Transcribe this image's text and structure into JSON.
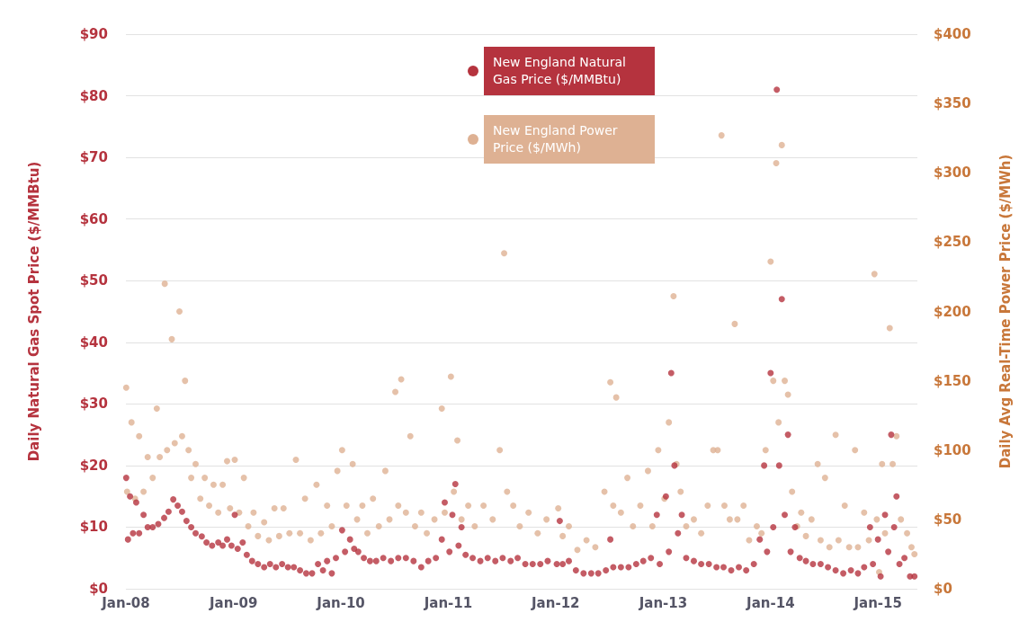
{
  "chart_data": {
    "type": "scatter",
    "ylabel": "Daily Natural Gas Spot Price ($/MMBtu)",
    "y2label": "Daily Avg Real-Time Power Price ($/MWh)",
    "xlim": [
      "2008-01-01",
      "2015-05-15"
    ],
    "xticks": [
      {
        "value": "2008-01",
        "label": "Jan-08"
      },
      {
        "value": "2009-01",
        "label": "Jan-09"
      },
      {
        "value": "2010-01",
        "label": "Jan-10"
      },
      {
        "value": "2011-01",
        "label": "Jan-11"
      },
      {
        "value": "2012-01",
        "label": "Jan-12"
      },
      {
        "value": "2013-01",
        "label": "Jan-13"
      },
      {
        "value": "2014-01",
        "label": "Jan-14"
      },
      {
        "value": "2015-01",
        "label": "Jan-15"
      }
    ],
    "ylim": [
      0,
      90
    ],
    "yticks": [
      {
        "value": 0,
        "label": "$0"
      },
      {
        "value": 10,
        "label": "$10"
      },
      {
        "value": 20,
        "label": "$20"
      },
      {
        "value": 30,
        "label": "$30"
      },
      {
        "value": 40,
        "label": "$40"
      },
      {
        "value": 50,
        "label": "$50"
      },
      {
        "value": 60,
        "label": "$60"
      },
      {
        "value": 70,
        "label": "$70"
      },
      {
        "value": 80,
        "label": "$80"
      },
      {
        "value": 90,
        "label": "$90"
      }
    ],
    "y2lim": [
      0,
      400
    ],
    "y2ticks": [
      {
        "value": 0,
        "label": "$0"
      },
      {
        "value": 50,
        "label": "$50"
      },
      {
        "value": 100,
        "label": "$100"
      },
      {
        "value": 150,
        "label": "$150"
      },
      {
        "value": 200,
        "label": "$200"
      },
      {
        "value": 250,
        "label": "$250"
      },
      {
        "value": 300,
        "label": "$300"
      },
      {
        "value": 350,
        "label": "$350"
      },
      {
        "value": 400,
        "label": "$400"
      }
    ],
    "grid": "y",
    "legend": "top",
    "marker": "circle",
    "series": [
      {
        "name": "New England Natural Gas Price ($/MMBtu)",
        "color": "#b5333e",
        "x": [
          "2008-01-02",
          "2008-01-08",
          "2008-01-15",
          "2008-01-25",
          "2008-02-05",
          "2008-02-15",
          "2008-03-01",
          "2008-03-15",
          "2008-04-01",
          "2008-04-20",
          "2008-05-10",
          "2008-05-25",
          "2008-06-10",
          "2008-06-25",
          "2008-07-10",
          "2008-07-25",
          "2008-08-10",
          "2008-08-25",
          "2008-09-15",
          "2008-10-01",
          "2008-10-20",
          "2008-11-10",
          "2008-11-25",
          "2008-12-10",
          "2008-12-25",
          "2009-01-05",
          "2009-01-15",
          "2009-02-01",
          "2009-02-15",
          "2009-03-05",
          "2009-03-25",
          "2009-04-15",
          "2009-05-05",
          "2009-05-25",
          "2009-06-15",
          "2009-07-05",
          "2009-07-25",
          "2009-08-15",
          "2009-09-05",
          "2009-09-25",
          "2009-10-15",
          "2009-11-01",
          "2009-11-15",
          "2009-12-01",
          "2009-12-15",
          "2010-01-05",
          "2010-01-15",
          "2010-02-01",
          "2010-02-15",
          "2010-03-01",
          "2010-03-20",
          "2010-04-10",
          "2010-05-01",
          "2010-05-25",
          "2010-06-20",
          "2010-07-15",
          "2010-08-10",
          "2010-09-05",
          "2010-10-01",
          "2010-10-25",
          "2010-11-20",
          "2010-12-10",
          "2010-12-20",
          "2011-01-05",
          "2011-01-15",
          "2011-01-25",
          "2011-02-05",
          "2011-02-15",
          "2011-03-01",
          "2011-03-25",
          "2011-04-20",
          "2011-05-15",
          "2011-06-10",
          "2011-07-05",
          "2011-08-01",
          "2011-08-25",
          "2011-09-20",
          "2011-10-15",
          "2011-11-10",
          "2011-12-05",
          "2012-01-05",
          "2012-01-15",
          "2012-01-25",
          "2012-02-15",
          "2012-03-10",
          "2012-04-05",
          "2012-05-01",
          "2012-05-25",
          "2012-06-20",
          "2012-07-05",
          "2012-07-15",
          "2012-08-10",
          "2012-09-05",
          "2012-10-01",
          "2012-10-25",
          "2012-11-20",
          "2012-12-10",
          "2012-12-20",
          "2013-01-10",
          "2013-01-20",
          "2013-01-28",
          "2013-02-08",
          "2013-02-20",
          "2013-03-05",
          "2013-03-20",
          "2013-04-15",
          "2013-05-10",
          "2013-06-05",
          "2013-07-01",
          "2013-07-25",
          "2013-08-20",
          "2013-09-15",
          "2013-10-10",
          "2013-11-05",
          "2013-11-25",
          "2013-12-10",
          "2013-12-20",
          "2014-01-01",
          "2014-01-10",
          "2014-01-22",
          "2014-01-30",
          "2014-02-08",
          "2014-02-18",
          "2014-03-01",
          "2014-03-10",
          "2014-03-25",
          "2014-04-10",
          "2014-05-01",
          "2014-05-25",
          "2014-06-20",
          "2014-07-15",
          "2014-08-10",
          "2014-09-05",
          "2014-10-01",
          "2014-10-25",
          "2014-11-15",
          "2014-12-05",
          "2014-12-15",
          "2015-01-01",
          "2015-01-10",
          "2015-01-25",
          "2015-02-05",
          "2015-02-15",
          "2015-02-25",
          "2015-03-05",
          "2015-03-15",
          "2015-04-01",
          "2015-04-20",
          "2015-05-05"
        ],
        "values": [
          18,
          8,
          15,
          9,
          14,
          9,
          12,
          10,
          10,
          10.5,
          11.5,
          12.5,
          14.5,
          13.5,
          12.5,
          11,
          10,
          9,
          8.5,
          7.5,
          7,
          7.5,
          7,
          8,
          7,
          12,
          6.5,
          7.5,
          5.5,
          4.5,
          4,
          3.5,
          4,
          3.5,
          4,
          3.5,
          3.5,
          3,
          2.5,
          2.5,
          4,
          3,
          4.5,
          2.5,
          5,
          9.5,
          6,
          8,
          6.5,
          6,
          5,
          4.5,
          4.5,
          5,
          4.5,
          5,
          5,
          4.5,
          3.5,
          4.5,
          5,
          8,
          14,
          6,
          12,
          17,
          7,
          10,
          5.5,
          5,
          4.5,
          5,
          4.5,
          5,
          4.5,
          5,
          4,
          4,
          4,
          4.5,
          4,
          11,
          4,
          4.5,
          3,
          2.5,
          2.5,
          2.5,
          3,
          8,
          3.5,
          3.5,
          3.5,
          4,
          4.5,
          5,
          12,
          4,
          15,
          6,
          35,
          20,
          9,
          12,
          5,
          4.5,
          4,
          4,
          3.5,
          3.5,
          3,
          3.5,
          3,
          4,
          8,
          20,
          6,
          35,
          10,
          81,
          20,
          47,
          12,
          25,
          6,
          10,
          5,
          4.5,
          4,
          4,
          3.5,
          3,
          2.5,
          3,
          2.5,
          3.5,
          10,
          4,
          8,
          2,
          12,
          6,
          25,
          10,
          15,
          4,
          5,
          2,
          2
        ]
      },
      {
        "name": "New England Power Price ($/MWh)",
        "color": "#deb193",
        "axis": "y2",
        "x": [
          "2008-01-02",
          "2008-01-05",
          "2008-01-20",
          "2008-02-01",
          "2008-02-15",
          "2008-03-01",
          "2008-03-15",
          "2008-04-01",
          "2008-04-15",
          "2008-04-25",
          "2008-05-12",
          "2008-05-20",
          "2008-06-05",
          "2008-06-15",
          "2008-07-01",
          "2008-07-10",
          "2008-07-20",
          "2008-08-01",
          "2008-08-10",
          "2008-08-25",
          "2008-09-10",
          "2008-09-25",
          "2008-10-10",
          "2008-10-25",
          "2008-11-10",
          "2008-11-25",
          "2008-12-10",
          "2008-12-20",
          "2009-01-05",
          "2009-01-20",
          "2009-02-05",
          "2009-02-20",
          "2009-03-10",
          "2009-03-25",
          "2009-04-15",
          "2009-05-01",
          "2009-05-20",
          "2009-06-05",
          "2009-06-20",
          "2009-07-10",
          "2009-08-01",
          "2009-08-15",
          "2009-09-01",
          "2009-09-20",
          "2009-10-10",
          "2009-10-25",
          "2009-11-15",
          "2009-12-01",
          "2009-12-20",
          "2010-01-05",
          "2010-01-20",
          "2010-02-10",
          "2010-02-25",
          "2010-03-15",
          "2010-04-01",
          "2010-04-20",
          "2010-05-10",
          "2010-06-01",
          "2010-06-15",
          "2010-07-05",
          "2010-07-15",
          "2010-07-25",
          "2010-08-10",
          "2010-08-25",
          "2010-09-10",
          "2010-10-01",
          "2010-10-20",
          "2010-11-15",
          "2010-12-10",
          "2010-12-20",
          "2011-01-10",
          "2011-01-20",
          "2011-02-01",
          "2011-02-15",
          "2011-03-10",
          "2011-04-01",
          "2011-05-01",
          "2011-06-01",
          "2011-06-25",
          "2011-07-10",
          "2011-07-20",
          "2011-08-10",
          "2011-09-01",
          "2011-10-01",
          "2011-11-01",
          "2011-12-01",
          "2012-01-10",
          "2012-01-25",
          "2012-02-15",
          "2012-03-15",
          "2012-04-15",
          "2012-05-15",
          "2012-06-15",
          "2012-07-05",
          "2012-07-15",
          "2012-07-25",
          "2012-08-10",
          "2012-09-01",
          "2012-09-20",
          "2012-10-15",
          "2012-11-10",
          "2012-11-25",
          "2012-12-15",
          "2013-01-05",
          "2013-01-20",
          "2013-02-05",
          "2013-02-15",
          "2013-03-01",
          "2013-03-20",
          "2013-04-15",
          "2013-05-10",
          "2013-06-01",
          "2013-06-20",
          "2013-07-05",
          "2013-07-18",
          "2013-07-28",
          "2013-08-15",
          "2013-09-01",
          "2013-09-10",
          "2013-10-01",
          "2013-10-20",
          "2013-11-15",
          "2013-12-01",
          "2013-12-15",
          "2014-01-01",
          "2014-01-10",
          "2014-01-20",
          "2014-01-28",
          "2014-02-08",
          "2014-02-18",
          "2014-03-01",
          "2014-03-15",
          "2014-04-01",
          "2014-04-15",
          "2014-05-01",
          "2014-05-20",
          "2014-06-10",
          "2014-06-20",
          "2014-07-05",
          "2014-07-20",
          "2014-08-10",
          "2014-08-20",
          "2014-09-10",
          "2014-09-25",
          "2014-10-15",
          "2014-10-25",
          "2014-11-15",
          "2014-12-01",
          "2014-12-20",
          "2014-12-28",
          "2015-01-05",
          "2015-01-15",
          "2015-01-25",
          "2015-02-10",
          "2015-02-20",
          "2015-03-05",
          "2015-03-20",
          "2015-04-10",
          "2015-04-25",
          "2015-05-05"
        ],
        "values": [
          145,
          70,
          120,
          65,
          110,
          70,
          95,
          80,
          130,
          95,
          220,
          100,
          180,
          105,
          200,
          110,
          150,
          100,
          80,
          90,
          65,
          80,
          60,
          75,
          55,
          75,
          92,
          58,
          93,
          55,
          80,
          45,
          55,
          38,
          48,
          35,
          58,
          38,
          58,
          40,
          93,
          40,
          65,
          35,
          75,
          40,
          60,
          45,
          85,
          100,
          60,
          90,
          50,
          60,
          40,
          65,
          45,
          85,
          50,
          142,
          60,
          151,
          55,
          110,
          45,
          55,
          40,
          50,
          130,
          55,
          153,
          70,
          107,
          50,
          60,
          45,
          60,
          50,
          100,
          242,
          70,
          60,
          45,
          55,
          40,
          50,
          58,
          38,
          45,
          28,
          35,
          30,
          70,
          149,
          60,
          138,
          55,
          80,
          45,
          60,
          85,
          45,
          100,
          65,
          120,
          211,
          90,
          70,
          45,
          50,
          40,
          60,
          100,
          100,
          327,
          60,
          50,
          191,
          50,
          60,
          35,
          45,
          40,
          100,
          236,
          150,
          307,
          120,
          320,
          150,
          140,
          70,
          45,
          55,
          38,
          50,
          90,
          35,
          80,
          30,
          111,
          35,
          60,
          30,
          100,
          30,
          55,
          35,
          227,
          50,
          12,
          90,
          40,
          188,
          90,
          110,
          50,
          40,
          30,
          25
        ]
      }
    ]
  }
}
